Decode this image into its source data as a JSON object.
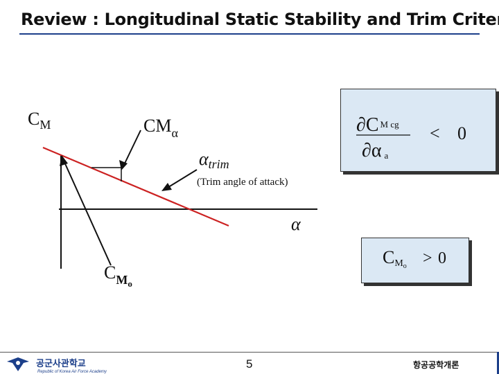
{
  "title": "Review : Longitudinal Static Stability and Trim Criteria",
  "diagram": {
    "cm_axis_label": {
      "base": "C",
      "sub": "M"
    },
    "cm_alpha_label": {
      "base": "CM",
      "sub": "α"
    },
    "alpha_trim_label": {
      "symbol": "α",
      "sub": "trim"
    },
    "trim_caption": "(Trim angle of attack)",
    "alpha_axis_label": "α",
    "cm0_label": {
      "base": "C",
      "sub": "M",
      "subsub": "o"
    }
  },
  "equations": {
    "stability": {
      "numerator": "∂C",
      "numerator_sub": "M cg",
      "denominator": "∂α",
      "denominator_sub": "a",
      "relation": "<",
      "rhs": "0"
    },
    "trim": {
      "lhs": "C",
      "lhs_sub": "M",
      "lhs_subsub": "o",
      "relation": ">",
      "rhs": "0"
    }
  },
  "footer": {
    "logo_text": "공군사관학교",
    "logo_subtext": "Republic of Korea Air Force Academy",
    "page_number": "5",
    "course_name": "항공공학개론"
  },
  "colors": {
    "title_rule": "#1c3f8a",
    "cm_line": "#cc2222",
    "equation_box": "#dbe8f4"
  }
}
